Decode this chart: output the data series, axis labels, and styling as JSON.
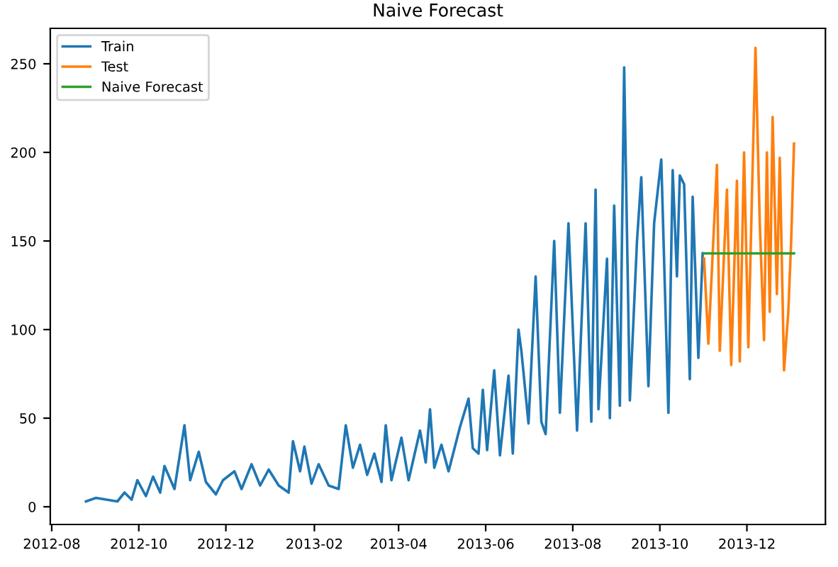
{
  "chart_data": {
    "type": "line",
    "title": "Naive Forecast",
    "series": [
      {
        "name": "Train",
        "color": "#1f77b4",
        "x": [
          "2012-08-25",
          "2012-09-01",
          "2012-09-16",
          "2012-09-21",
          "2012-09-26",
          "2012-09-30",
          "2012-10-06",
          "2012-10-11",
          "2012-10-16",
          "2012-10-19",
          "2012-10-26",
          "2012-11-02",
          "2012-11-06",
          "2012-11-12",
          "2012-11-17",
          "2012-11-24",
          "2012-11-29",
          "2012-12-07",
          "2012-12-12",
          "2012-12-19",
          "2012-12-25",
          "2012-12-31",
          "2013-01-07",
          "2013-01-14",
          "2013-01-17",
          "2013-01-22",
          "2013-01-25",
          "2013-01-30",
          "2013-02-04",
          "2013-02-11",
          "2013-02-18",
          "2013-02-23",
          "2013-02-28",
          "2013-03-05",
          "2013-03-10",
          "2013-03-15",
          "2013-03-20",
          "2013-03-23",
          "2013-03-27",
          "2013-04-03",
          "2013-04-08",
          "2013-04-16",
          "2013-04-20",
          "2013-04-23",
          "2013-04-26",
          "2013-05-01",
          "2013-05-06",
          "2013-05-14",
          "2013-05-20",
          "2013-05-23",
          "2013-05-27",
          "2013-05-30",
          "2013-06-02",
          "2013-06-07",
          "2013-06-11",
          "2013-06-17",
          "2013-06-20",
          "2013-06-24",
          "2013-06-26",
          "2013-07-01",
          "2013-07-06",
          "2013-07-10",
          "2013-07-13",
          "2013-07-19",
          "2013-07-23",
          "2013-07-29",
          "2013-08-04",
          "2013-08-10",
          "2013-08-14",
          "2013-08-17",
          "2013-08-19",
          "2013-08-25",
          "2013-08-27",
          "2013-08-30",
          "2013-09-03",
          "2013-09-06",
          "2013-09-10",
          "2013-09-15",
          "2013-09-18",
          "2013-09-23",
          "2013-09-27",
          "2013-10-02",
          "2013-10-07",
          "2013-10-10",
          "2013-10-13",
          "2013-10-15",
          "2013-10-18",
          "2013-10-22",
          "2013-10-24",
          "2013-10-28",
          "2013-10-31"
        ],
        "values": [
          3,
          5,
          3,
          8,
          4,
          15,
          6,
          17,
          8,
          23,
          10,
          46,
          15,
          31,
          14,
          7,
          15,
          20,
          10,
          24,
          12,
          21,
          12,
          8,
          37,
          20,
          34,
          13,
          24,
          12,
          10,
          46,
          22,
          35,
          18,
          30,
          14,
          46,
          15,
          39,
          15,
          43,
          25,
          55,
          22,
          35,
          20,
          45,
          61,
          33,
          30,
          66,
          32,
          77,
          29,
          74,
          30,
          100,
          88,
          47,
          130,
          48,
          41,
          150,
          53,
          160,
          43,
          160,
          48,
          179,
          55,
          140,
          50,
          170,
          57,
          248,
          60,
          150,
          186,
          68,
          160,
          196,
          53,
          190,
          130,
          187,
          182,
          72,
          175,
          84,
          143
        ]
      },
      {
        "name": "Test",
        "color": "#ff7f0e",
        "x": [
          "2013-11-01",
          "2013-11-04",
          "2013-11-10",
          "2013-11-12",
          "2013-11-17",
          "2013-11-20",
          "2013-11-24",
          "2013-11-26",
          "2013-11-29",
          "2013-12-02",
          "2013-12-07",
          "2013-12-10",
          "2013-12-13",
          "2013-12-15",
          "2013-12-17",
          "2013-12-19",
          "2013-12-22",
          "2013-12-24",
          "2013-12-27",
          "2013-12-30",
          "2014-01-01",
          "2014-01-03"
        ],
        "values": [
          140,
          92,
          193,
          88,
          179,
          80,
          184,
          82,
          200,
          90,
          259,
          160,
          94,
          200,
          110,
          220,
          120,
          197,
          77,
          110,
          150,
          205
        ]
      },
      {
        "name": "Naive Forecast",
        "color": "#2ca02c",
        "x": [
          "2013-11-01",
          "2014-01-03"
        ],
        "values": [
          143,
          143
        ]
      }
    ],
    "xlim": [
      "2012-07-31",
      "2014-01-25"
    ],
    "xticks": [
      {
        "value": "2012-08-01",
        "label": "2012-08"
      },
      {
        "value": "2012-10-01",
        "label": "2012-10"
      },
      {
        "value": "2012-12-01",
        "label": "2012-12"
      },
      {
        "value": "2013-02-01",
        "label": "2013-02"
      },
      {
        "value": "2013-04-01",
        "label": "2013-04"
      },
      {
        "value": "2013-06-01",
        "label": "2013-06"
      },
      {
        "value": "2013-08-01",
        "label": "2013-08"
      },
      {
        "value": "2013-10-01",
        "label": "2013-10"
      },
      {
        "value": "2013-12-01",
        "label": "2013-12"
      }
    ],
    "ylim": [
      -10,
      270
    ],
    "yticks": [
      0,
      50,
      100,
      150,
      200,
      250
    ],
    "legend": "top left",
    "grid": false
  }
}
